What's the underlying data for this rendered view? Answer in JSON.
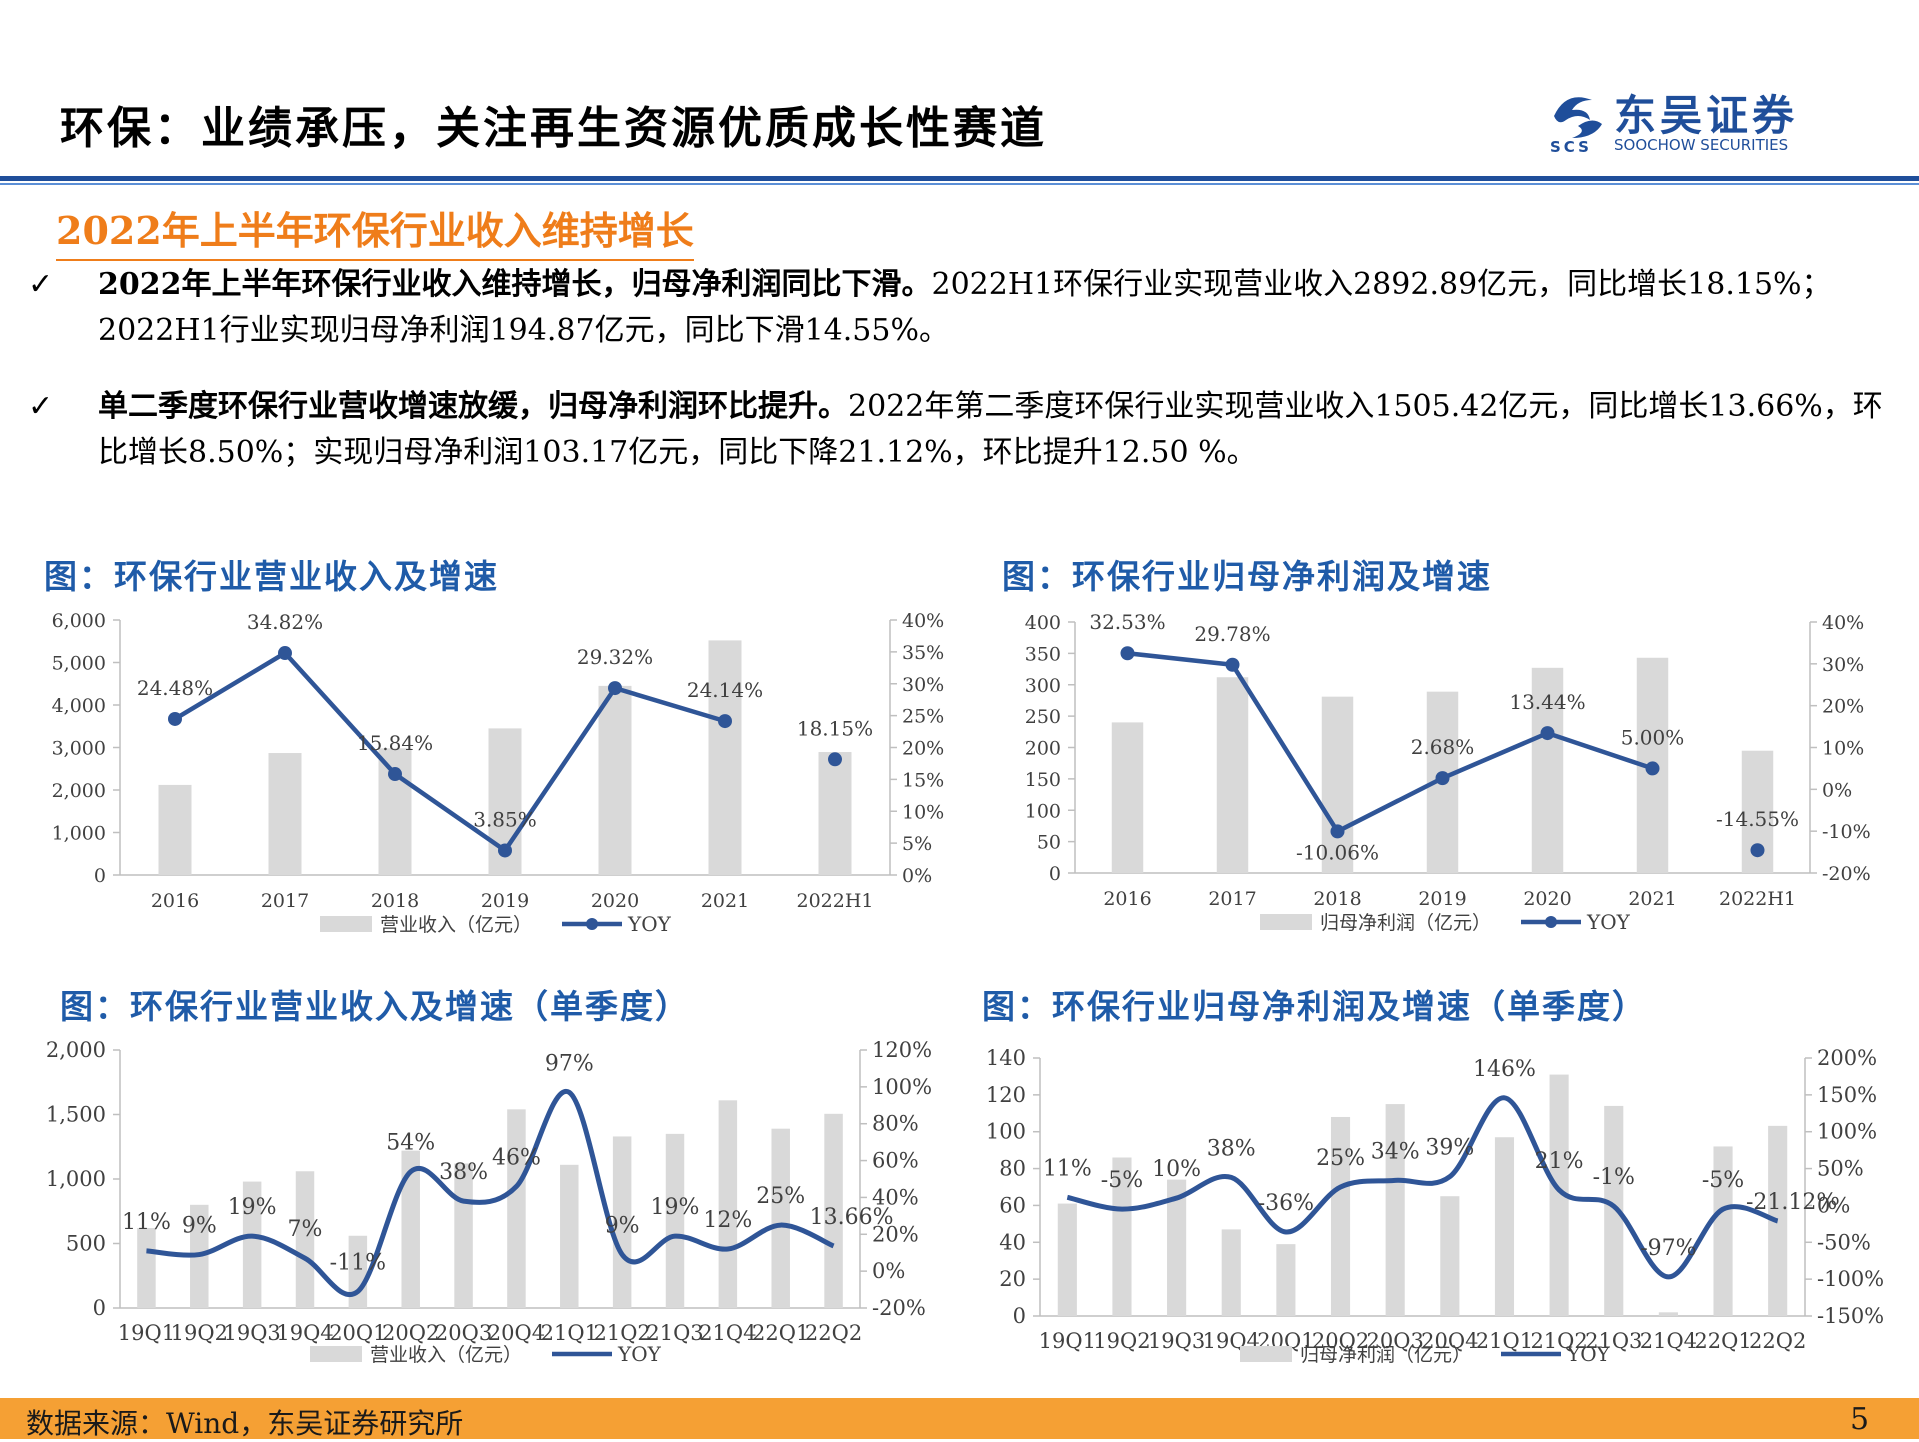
{
  "header": {
    "title": "环保：业绩承压，关注再生资源优质成长性赛道",
    "logo_name": "东吴证券",
    "logo_sub": "SOOCHOW SECURITIES",
    "logo_mark": "SCS"
  },
  "section": {
    "heading": "2022年上半年环保行业收入维持增长"
  },
  "bullets": [
    {
      "check": "✓",
      "bold": "2022年上半年环保行业收入维持增长，归母净利润同比下滑。",
      "text": "2022H1环保行业实现营业收入2892.89亿元，同比增长18.15%；2022H1行业实现归母净利润194.87亿元，同比下滑14.55%。"
    },
    {
      "check": "✓",
      "bold": "单二季度环保行业营收增速放缓，归母净利润环比提升。",
      "text": "2022年第二季度环保行业实现营业收入1505.42亿元，同比增长13.66%，环比增长8.50%；实现归母净利润103.17亿元，同比下降21.12%，环比提升12.50 %。"
    }
  ],
  "colors": {
    "bar": "#d9d9d9",
    "line": "#2f5597",
    "title": "#1f5ba8",
    "accent": "#ef7d1a",
    "footer": "#f5a034"
  },
  "chart_data": [
    {
      "type": "bar",
      "title": "图：环保行业营业收入及增速",
      "categories": [
        "2016",
        "2017",
        "2018",
        "2019",
        "2020",
        "2021",
        "2022H1"
      ],
      "series": [
        {
          "name": "营业收入（亿元）",
          "type": "bar",
          "axis": "left",
          "values": [
            2120,
            2870,
            2980,
            3450,
            4450,
            5520,
            2892.89
          ]
        },
        {
          "name": "YOY",
          "type": "line",
          "axis": "right",
          "values": [
            24.48,
            34.82,
            15.84,
            3.85,
            29.32,
            24.14,
            18.15
          ],
          "labels": [
            "24.48%",
            "34.82%",
            "15.84%",
            "3.85%",
            "29.32%",
            "24.14%",
            "18.15%"
          ],
          "connect_last": false
        }
      ],
      "left_ticks": [
        "0",
        "1,000",
        "2,000",
        "3,000",
        "4,000",
        "5,000",
        "6,000"
      ],
      "right_ticks": [
        "0%",
        "5%",
        "10%",
        "15%",
        "20%",
        "25%",
        "30%",
        "35%",
        "40%"
      ],
      "ylim": [
        0,
        6000
      ],
      "y2lim": [
        0,
        40
      ],
      "legend": "bottom"
    },
    {
      "type": "bar",
      "title": "图：环保行业归母净利润及增速",
      "categories": [
        "2016",
        "2017",
        "2018",
        "2019",
        "2020",
        "2021",
        "2022H1"
      ],
      "series": [
        {
          "name": "归母净利润（亿元）",
          "type": "bar",
          "axis": "left",
          "values": [
            240,
            312,
            281,
            289,
            327,
            343,
            194.87
          ]
        },
        {
          "name": "YOY",
          "type": "line",
          "axis": "right",
          "values": [
            32.53,
            29.78,
            -10.06,
            2.68,
            13.44,
            5.0,
            -14.55
          ],
          "labels": [
            "32.53%",
            "29.78%",
            "-10.06%",
            "2.68%",
            "13.44%",
            "5.00%",
            "-14.55%"
          ],
          "connect_last": false
        }
      ],
      "left_ticks": [
        "0",
        "50",
        "100",
        "150",
        "200",
        "250",
        "300",
        "350",
        "400"
      ],
      "right_ticks": [
        "-20%",
        "-10%",
        "0%",
        "10%",
        "20%",
        "30%",
        "40%"
      ],
      "ylim": [
        0,
        400
      ],
      "y2lim": [
        -20,
        40
      ],
      "legend": "bottom"
    },
    {
      "type": "bar",
      "title": "图：环保行业营业收入及增速（单季度）",
      "categories": [
        "19Q1",
        "19Q2",
        "19Q3",
        "19Q4",
        "20Q1",
        "20Q2",
        "20Q3",
        "20Q4",
        "21Q1",
        "21Q2",
        "21Q3",
        "21Q4",
        "22Q1",
        "22Q2"
      ],
      "series": [
        {
          "name": "营业收入（亿元）",
          "type": "bar",
          "axis": "left",
          "values": [
            620,
            800,
            980,
            1060,
            560,
            1220,
            1120,
            1540,
            1110,
            1330,
            1350,
            1610,
            1390,
            1505.42
          ]
        },
        {
          "name": "YOY",
          "type": "line",
          "axis": "right",
          "smooth": true,
          "values": [
            11,
            9,
            19,
            7,
            -11,
            54,
            38,
            46,
            97,
            9,
            19,
            12,
            25,
            13.66
          ],
          "labels": [
            "11%",
            "9%",
            "19%",
            "7%",
            "-11%",
            "54%",
            "38%",
            "46%",
            "97%",
            "9%",
            "19%",
            "12%",
            "25%",
            "13.66%"
          ]
        }
      ],
      "left_ticks": [
        "0",
        "500",
        "1,000",
        "1,500",
        "2,000"
      ],
      "right_ticks": [
        "-20%",
        "0%",
        "20%",
        "40%",
        "60%",
        "80%",
        "100%",
        "120%"
      ],
      "ylim": [
        0,
        2000
      ],
      "y2lim": [
        -20,
        120
      ],
      "legend": "bottom"
    },
    {
      "type": "bar",
      "title": "图：环保行业归母净利润及增速（单季度）",
      "categories": [
        "19Q1",
        "19Q2",
        "19Q3",
        "19Q4",
        "20Q1",
        "20Q2",
        "20Q3",
        "20Q4",
        "21Q1",
        "21Q2",
        "21Q3",
        "21Q4",
        "22Q1",
        "22Q2"
      ],
      "series": [
        {
          "name": "归母净利润（亿元）",
          "type": "bar",
          "axis": "left",
          "values": [
            61,
            86,
            74,
            47,
            39,
            108,
            115,
            65,
            97,
            131,
            114,
            2,
            92,
            103.17
          ]
        },
        {
          "name": "YOY",
          "type": "line",
          "axis": "right",
          "smooth": true,
          "values": [
            11,
            -5,
            10,
            38,
            -36,
            25,
            34,
            39,
            146,
            21,
            -1,
            -97,
            -5,
            -21.12
          ],
          "labels": [
            "11%",
            "-5%",
            "10%",
            "38%",
            "-36%",
            "25%",
            "34%",
            "39%",
            "146%",
            "21%",
            "-1%",
            "-97%",
            "-5%",
            "-21.12%"
          ]
        }
      ],
      "left_ticks": [
        "0",
        "20",
        "40",
        "60",
        "80",
        "100",
        "120",
        "140"
      ],
      "right_ticks": [
        "-150%",
        "-100%",
        "-50%",
        "0%",
        "50%",
        "100%",
        "150%",
        "200%"
      ],
      "ylim": [
        0,
        140
      ],
      "y2lim": [
        -150,
        200
      ],
      "legend": "bottom"
    }
  ],
  "footer": {
    "source": "数据来源：Wind，东吴证券研究所",
    "page": "5"
  }
}
